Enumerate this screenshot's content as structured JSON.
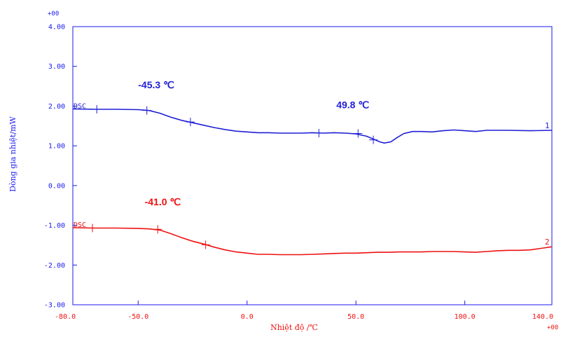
{
  "chart_data": {
    "type": "line",
    "title": "",
    "xlabel": "Nhiệt độ /℃",
    "ylabel": "Dòng gia nhiệt/mW",
    "xlim": [
      -80,
      140
    ],
    "ylim": [
      -3,
      4
    ],
    "x_ticks": [
      -80,
      -50,
      0,
      50,
      100,
      140
    ],
    "x_tick_labels": [
      "-80.0",
      "-50.0",
      "0.0",
      "50.0",
      "100.0",
      "140.0"
    ],
    "y_ticks": [
      4,
      3,
      2,
      1,
      0,
      -1,
      -2,
      -3
    ],
    "y_tick_labels": [
      "4.00",
      "3.00",
      "2.00",
      "1.00",
      "0.00",
      "-1.00",
      "-2.00",
      "-3.00"
    ],
    "y_exponent_label": "+00",
    "x_exponent_label": "+00",
    "grid": false,
    "series": [
      {
        "color": "#1f1fd6",
        "curve_label": "DSC",
        "end_label": "1",
        "points": [
          [
            -80,
            1.93
          ],
          [
            -70,
            1.92
          ],
          [
            -60,
            1.92
          ],
          [
            -50,
            1.91
          ],
          [
            -45,
            1.89
          ],
          [
            -40,
            1.82
          ],
          [
            -35,
            1.72
          ],
          [
            -30,
            1.64
          ],
          [
            -25,
            1.58
          ],
          [
            -20,
            1.52
          ],
          [
            -15,
            1.46
          ],
          [
            -10,
            1.41
          ],
          [
            -5,
            1.37
          ],
          [
            0,
            1.35
          ],
          [
            5,
            1.33
          ],
          [
            10,
            1.33
          ],
          [
            15,
            1.32
          ],
          [
            20,
            1.32
          ],
          [
            25,
            1.32
          ],
          [
            30,
            1.33
          ],
          [
            35,
            1.32
          ],
          [
            40,
            1.33
          ],
          [
            45,
            1.32
          ],
          [
            50,
            1.3
          ],
          [
            55,
            1.24
          ],
          [
            58,
            1.17
          ],
          [
            61,
            1.1
          ],
          [
            63,
            1.07
          ],
          [
            66,
            1.1
          ],
          [
            69,
            1.21
          ],
          [
            72,
            1.31
          ],
          [
            76,
            1.36
          ],
          [
            80,
            1.36
          ],
          [
            85,
            1.35
          ],
          [
            90,
            1.38
          ],
          [
            95,
            1.4
          ],
          [
            100,
            1.38
          ],
          [
            105,
            1.36
          ],
          [
            110,
            1.39
          ],
          [
            120,
            1.39
          ],
          [
            130,
            1.38
          ],
          [
            140,
            1.39
          ]
        ],
        "markers": [
          [
            -69,
            1.92
          ],
          [
            -46,
            1.89
          ],
          [
            -26,
            1.6
          ],
          [
            33,
            1.32
          ],
          [
            51,
            1.31
          ],
          [
            58,
            1.15
          ]
        ]
      },
      {
        "color": "#ee1111",
        "curve_label": "DSC",
        "end_label": "2",
        "points": [
          [
            -80,
            -1.06
          ],
          [
            -70,
            -1.07
          ],
          [
            -60,
            -1.07
          ],
          [
            -50,
            -1.08
          ],
          [
            -45,
            -1.09
          ],
          [
            -40,
            -1.12
          ],
          [
            -35,
            -1.21
          ],
          [
            -30,
            -1.31
          ],
          [
            -25,
            -1.4
          ],
          [
            -20,
            -1.47
          ],
          [
            -15,
            -1.55
          ],
          [
            -10,
            -1.62
          ],
          [
            -5,
            -1.67
          ],
          [
            0,
            -1.7
          ],
          [
            5,
            -1.73
          ],
          [
            10,
            -1.73
          ],
          [
            15,
            -1.74
          ],
          [
            20,
            -1.74
          ],
          [
            25,
            -1.74
          ],
          [
            30,
            -1.73
          ],
          [
            35,
            -1.72
          ],
          [
            40,
            -1.71
          ],
          [
            45,
            -1.7
          ],
          [
            50,
            -1.7
          ],
          [
            55,
            -1.69
          ],
          [
            60,
            -1.68
          ],
          [
            65,
            -1.68
          ],
          [
            70,
            -1.67
          ],
          [
            75,
            -1.67
          ],
          [
            80,
            -1.67
          ],
          [
            85,
            -1.66
          ],
          [
            90,
            -1.66
          ],
          [
            95,
            -1.66
          ],
          [
            100,
            -1.67
          ],
          [
            105,
            -1.68
          ],
          [
            110,
            -1.66
          ],
          [
            115,
            -1.64
          ],
          [
            120,
            -1.63
          ],
          [
            125,
            -1.63
          ],
          [
            130,
            -1.62
          ],
          [
            135,
            -1.58
          ],
          [
            140,
            -1.54
          ]
        ],
        "markers": [
          [
            -71,
            -1.07
          ],
          [
            -41,
            -1.1
          ],
          [
            -19,
            -1.49
          ]
        ]
      }
    ],
    "annotations": [
      {
        "text": "-45.3 ℃",
        "color": "#1f1fd6",
        "x": -50,
        "y": 2.45
      },
      {
        "text": "49.8 ℃",
        "color": "#1f1fd6",
        "x": 41,
        "y": 1.95
      },
      {
        "text": "-41.0 ℃",
        "color": "#ee1111",
        "x": -47,
        "y": -0.5
      }
    ]
  }
}
